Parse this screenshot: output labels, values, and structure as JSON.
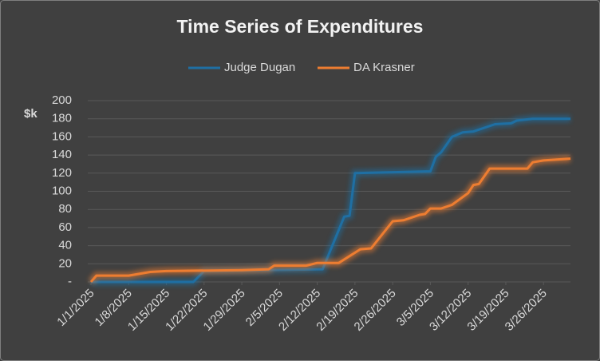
{
  "chart_data": {
    "type": "line",
    "title": "Time Series of Expenditures",
    "y_label": "$k",
    "xlim": [
      "2025-01-01",
      "2025-03-31"
    ],
    "xticks": [
      {
        "value": "2025-01-01",
        "label": "1/1/2025"
      },
      {
        "value": "2025-01-08",
        "label": "1/8/2025"
      },
      {
        "value": "2025-01-15",
        "label": "1/15/2025"
      },
      {
        "value": "2025-01-22",
        "label": "1/22/2025"
      },
      {
        "value": "2025-01-29",
        "label": "1/29/2025"
      },
      {
        "value": "2025-02-05",
        "label": "2/5/2025"
      },
      {
        "value": "2025-02-12",
        "label": "2/12/2025"
      },
      {
        "value": "2025-02-19",
        "label": "2/19/2025"
      },
      {
        "value": "2025-02-26",
        "label": "2/26/2025"
      },
      {
        "value": "2025-03-05",
        "label": "3/5/2025"
      },
      {
        "value": "2025-03-12",
        "label": "3/12/2025"
      },
      {
        "value": "2025-03-19",
        "label": "3/19/2025"
      },
      {
        "value": "2025-03-26",
        "label": "3/26/2025"
      }
    ],
    "ylim": [
      0,
      200
    ],
    "yticks": [
      {
        "value": 0,
        "label": "-"
      },
      20,
      40,
      60,
      80,
      100,
      120,
      140,
      160,
      180,
      200
    ],
    "grid": true,
    "legend": "top",
    "series": [
      {
        "name": "Judge Dugan",
        "color": "#1f6fa3",
        "x": [
          "2025-01-01",
          "2025-01-20",
          "2025-01-22",
          "2025-02-13",
          "2025-02-17",
          "2025-02-18",
          "2025-02-19",
          "2025-03-05",
          "2025-03-06",
          "2025-03-07",
          "2025-03-09",
          "2025-03-11",
          "2025-03-13",
          "2025-03-17",
          "2025-03-20",
          "2025-03-21",
          "2025-03-24",
          "2025-03-31"
        ],
        "values": [
          0,
          0,
          12,
          14,
          72,
          73,
          120,
          122,
          138,
          143,
          160,
          165,
          166,
          174,
          175,
          178,
          180,
          180
        ]
      },
      {
        "name": "DA Krasner",
        "color": "#ed7d31",
        "x": [
          "2025-01-01",
          "2025-01-02",
          "2025-01-08",
          "2025-01-12",
          "2025-01-15",
          "2025-01-29",
          "2025-02-03",
          "2025-02-04",
          "2025-02-10",
          "2025-02-12",
          "2025-02-16",
          "2025-02-20",
          "2025-02-22",
          "2025-02-26",
          "2025-02-28",
          "2025-03-03",
          "2025-03-04",
          "2025-03-05",
          "2025-03-07",
          "2025-03-09",
          "2025-03-12",
          "2025-03-13",
          "2025-03-14",
          "2025-03-16",
          "2025-03-23",
          "2025-03-24",
          "2025-03-26",
          "2025-03-31"
        ],
        "values": [
          0,
          7,
          7,
          11,
          12,
          13,
          14,
          18,
          18,
          21,
          21,
          36,
          37,
          67,
          68,
          74,
          75,
          81,
          81,
          85,
          98,
          107,
          108,
          125,
          125,
          132,
          134,
          136
        ]
      }
    ]
  }
}
